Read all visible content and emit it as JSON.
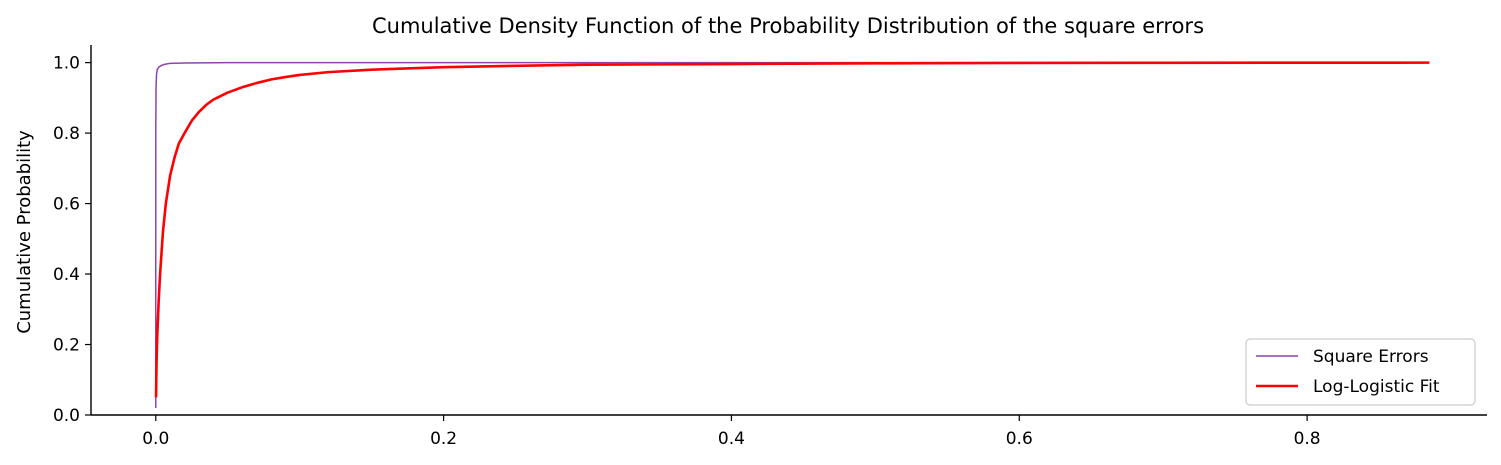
{
  "chart_data": {
    "type": "line",
    "title": "Cumulative Density Function of the Probability Distribution of the square errors",
    "xlabel": "",
    "ylabel": "Cumulative Probability",
    "xlim": [
      -0.045,
      0.925
    ],
    "ylim": [
      0,
      1.05
    ],
    "xticks": [
      0.0,
      0.2,
      0.4,
      0.6,
      0.8
    ],
    "xtick_labels": [
      "0.0",
      "0.2",
      "0.4",
      "0.6",
      "0.8"
    ],
    "yticks": [
      0.0,
      0.2,
      0.4,
      0.6,
      0.8,
      1.0
    ],
    "ytick_labels": [
      "0.0",
      "0.2",
      "0.4",
      "0.6",
      "0.8",
      "1.0"
    ],
    "grid": false,
    "legend_position": "lower right",
    "series": [
      {
        "name": "Square Errors",
        "color": "#8e44ad",
        "x": [
          0.0,
          0.0,
          0.0002,
          0.0005,
          0.001,
          0.002,
          0.004,
          0.006,
          0.01,
          0.02,
          0.05,
          0.1,
          0.3,
          0.6,
          0.885
        ],
        "y": [
          0.02,
          0.8,
          0.93,
          0.965,
          0.98,
          0.987,
          0.992,
          0.995,
          0.998,
          0.999,
          1.0,
          1.0,
          1.0,
          1.0,
          1.0
        ]
      },
      {
        "name": "Log-Logistic Fit",
        "color": "#ff0000",
        "x": [
          0.0002,
          0.0005,
          0.001,
          0.002,
          0.003,
          0.005,
          0.007,
          0.01,
          0.013,
          0.016,
          0.02,
          0.025,
          0.03,
          0.035,
          0.04,
          0.05,
          0.06,
          0.07,
          0.08,
          0.09,
          0.1,
          0.12,
          0.15,
          0.2,
          0.25,
          0.3,
          0.4,
          0.5,
          0.6,
          0.7,
          0.8,
          0.885
        ],
        "y": [
          0.05,
          0.14,
          0.22,
          0.32,
          0.4,
          0.52,
          0.6,
          0.68,
          0.73,
          0.77,
          0.8,
          0.835,
          0.86,
          0.88,
          0.895,
          0.915,
          0.93,
          0.942,
          0.952,
          0.959,
          0.965,
          0.973,
          0.98,
          0.987,
          0.991,
          0.994,
          0.996,
          0.998,
          0.999,
          0.9995,
          0.9998,
          1.0
        ]
      }
    ]
  }
}
